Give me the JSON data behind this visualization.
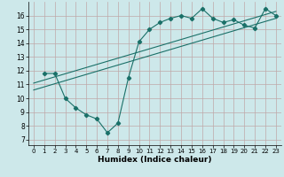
{
  "line1_x": [
    1,
    2,
    3,
    4,
    5,
    6,
    7,
    8,
    9,
    10,
    11,
    12,
    13,
    14,
    15,
    16,
    17,
    18,
    19,
    20,
    21,
    22,
    23
  ],
  "line1_y": [
    11.8,
    11.8,
    10.0,
    9.3,
    8.8,
    8.5,
    7.5,
    8.2,
    11.5,
    14.1,
    15.0,
    15.5,
    15.8,
    16.0,
    15.8,
    16.5,
    15.8,
    15.5,
    15.7,
    15.3,
    15.1,
    16.5,
    16.0
  ],
  "line2_x": [
    0,
    23
  ],
  "line2_y": [
    10.6,
    15.8
  ],
  "line3_x": [
    0,
    23
  ],
  "line3_y": [
    11.1,
    16.3
  ],
  "line_color": "#1a7068",
  "marker": "D",
  "marker_size": 2.2,
  "bg_color": "#cde8ea",
  "grid_color": "#c0a8a8",
  "xlabel": "Humidex (Indice chaleur)",
  "xlabel_fontsize": 6.5,
  "ylabel_ticks": [
    7,
    8,
    9,
    10,
    11,
    12,
    13,
    14,
    15,
    16
  ],
  "xlabel_ticks": [
    0,
    1,
    2,
    3,
    4,
    5,
    6,
    7,
    8,
    9,
    10,
    11,
    12,
    13,
    14,
    15,
    16,
    17,
    18,
    19,
    20,
    21,
    22,
    23
  ],
  "ylim": [
    6.6,
    17.0
  ],
  "xlim": [
    -0.5,
    23.5
  ]
}
